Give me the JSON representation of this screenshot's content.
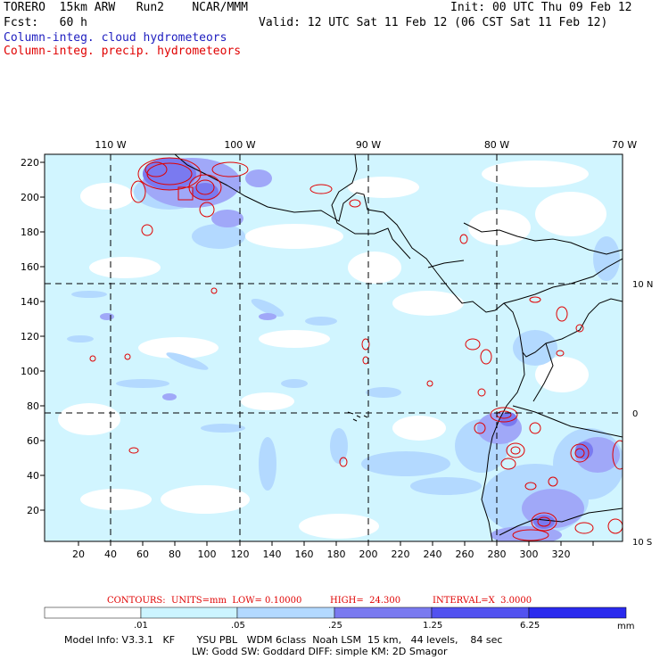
{
  "header": {
    "model": "TORERO  15km ARW   Run2    NCAR/MMM",
    "init": "Init: 00 UTC Thu 09 Feb 12",
    "fcst": "Fcst:   60 h",
    "valid": "Valid: 12 UTC Sat 11 Feb 12 (06 CST Sat 11 Feb 12)",
    "field1": "Column-integ. cloud hydrometeors",
    "field2": "Column-integ. precip. hydrometeors"
  },
  "colors": {
    "field1": "#2020c0",
    "field2": "#e00000",
    "levels": [
      "#ffffff",
      "#ccf4ff",
      "#b3d9ff",
      "#a0a8f8",
      "#7a7af0",
      "#5252f0",
      "#2a2aee"
    ]
  },
  "axes": {
    "top_lon": [
      "110 W",
      "100 W",
      "90 W",
      "80 W",
      "70 W"
    ],
    "right_lat": [
      "10 N",
      "0",
      "10 S"
    ],
    "y_ticks": [
      "220",
      "200",
      "180",
      "160",
      "140",
      "120",
      "100",
      "80",
      "60",
      "40",
      "20"
    ],
    "x_ticks": [
      "20",
      "40",
      "60",
      "80",
      "100",
      "120",
      "140",
      "160",
      "180",
      "200",
      "220",
      "240",
      "260",
      "280",
      "300",
      "320"
    ]
  },
  "contours_line": {
    "contours": "CONTOURS:  UNITS=mm  LOW= 0.10000",
    "high": "HIGH=  24.300",
    "interval": "INTERVAL=X  3.0000"
  },
  "colorbar": {
    "labels": [
      ".01",
      ".05",
      ".25",
      "1.25",
      "6.25"
    ],
    "unit": "mm"
  },
  "footer": {
    "line1": "Model Info: V3.3.1   KF       YSU PBL   WDM 6class  Noah LSM  15 km,   44 levels,    84 sec",
    "line2": "LW: Godd SW: Goddard DIFF: simple KM: 2D Smagor"
  }
}
